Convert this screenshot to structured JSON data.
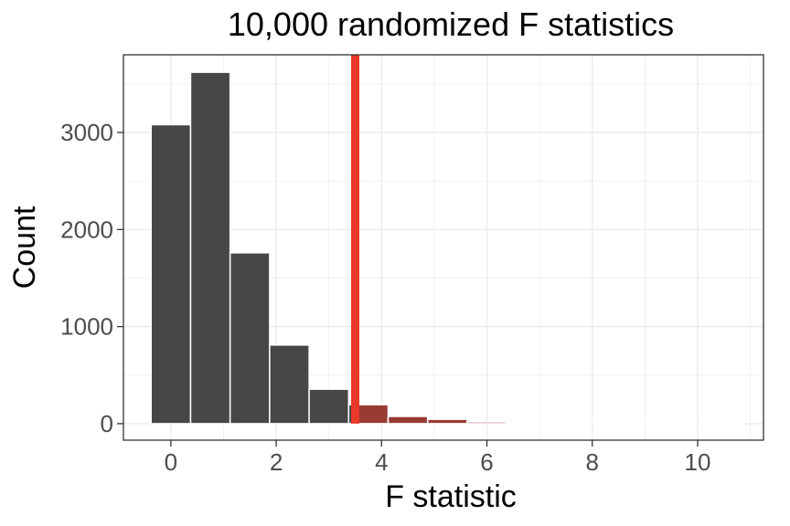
{
  "chart_data": {
    "type": "bar",
    "title": "10,000 randomized F statistics",
    "xlabel": "F statistic",
    "ylabel": "Count",
    "xlim": [
      -0.9,
      11.25
    ],
    "ylim": [
      -170,
      3800
    ],
    "x_ticks": [
      0,
      2,
      4,
      6,
      8,
      10
    ],
    "y_ticks": [
      0,
      1000,
      2000,
      3000
    ],
    "grid": true,
    "bin_width": 0.75,
    "bins": [
      {
        "x_start": -0.375,
        "x_end": 0.375,
        "count": 3080
      },
      {
        "x_start": 0.375,
        "x_end": 1.125,
        "count": 3620
      },
      {
        "x_start": 1.125,
        "x_end": 1.875,
        "count": 1760
      },
      {
        "x_start": 1.875,
        "x_end": 2.625,
        "count": 810
      },
      {
        "x_start": 2.625,
        "x_end": 3.375,
        "count": 355
      },
      {
        "x_start": 3.375,
        "x_end": 4.125,
        "count": 195
      },
      {
        "x_start": 4.125,
        "x_end": 4.875,
        "count": 75
      },
      {
        "x_start": 4.875,
        "x_end": 5.625,
        "count": 45
      },
      {
        "x_start": 5.625,
        "x_end": 6.375,
        "count": 18
      },
      {
        "x_start": 6.375,
        "x_end": 7.125,
        "count": 10
      },
      {
        "x_start": 7.125,
        "x_end": 7.875,
        "count": 6
      },
      {
        "x_start": 7.875,
        "x_end": 8.625,
        "count": 3
      },
      {
        "x_start": 8.625,
        "x_end": 9.375,
        "count": 2
      },
      {
        "x_start": 9.375,
        "x_end": 10.125,
        "count": 1
      },
      {
        "x_start": 10.125,
        "x_end": 10.875,
        "count": 1
      }
    ],
    "bar_color": "#474747",
    "shaded_color": "#a83a32",
    "observed_f": 3.5,
    "reference_line_color": "#e8392a",
    "background_color": "#ffffff",
    "grid_color": "#ebebeb",
    "panel_border_color": "#333333"
  }
}
